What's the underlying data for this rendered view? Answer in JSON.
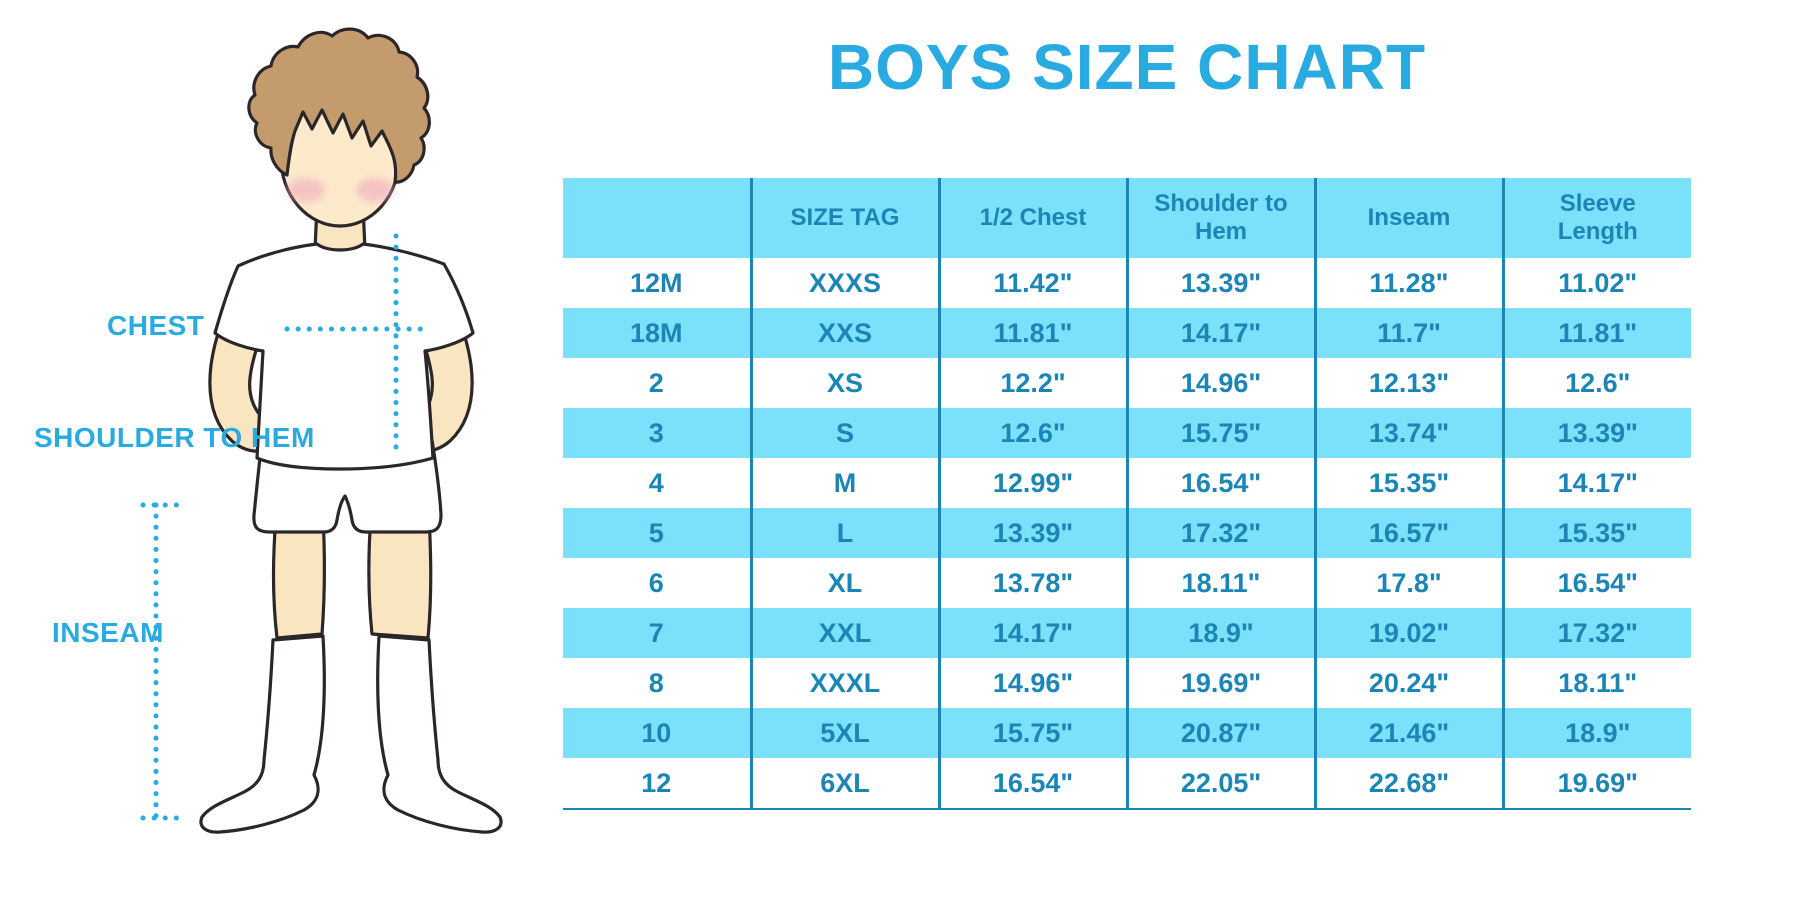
{
  "page": {
    "title": "BOYS SIZE CHART"
  },
  "colors": {
    "accent_blue": "#29ABE2",
    "table_text_blue": "#1B86B5",
    "table_row_fill": "#7BE0FA",
    "illustration_outline": "#2B2627",
    "skin": "#FAE5C1",
    "hair": "#C49B6C",
    "blush": "#F1A9BE"
  },
  "diagram": {
    "figure": "boy-measurement-illustration",
    "labels": {
      "chest": "CHEST",
      "shoulder_to_hem": "SHOULDER TO HEM",
      "inseam": "INSEAM"
    }
  },
  "table": {
    "headers": [
      "",
      "SIZE TAG",
      "1/2 Chest",
      "Shoulder to Hem",
      "Inseam",
      "Sleeve Length"
    ],
    "rows": [
      [
        "12M",
        "XXXS",
        "11.42\"",
        "13.39\"",
        "11.28\"",
        "11.02\""
      ],
      [
        "18M",
        "XXS",
        "11.81\"",
        "14.17\"",
        "11.7\"",
        "11.81\""
      ],
      [
        "2",
        "XS",
        "12.2\"",
        "14.96\"",
        "12.13\"",
        "12.6\""
      ],
      [
        "3",
        "S",
        "12.6\"",
        "15.75\"",
        "13.74\"",
        "13.39\""
      ],
      [
        "4",
        "M",
        "12.99\"",
        "16.54\"",
        "15.35\"",
        "14.17\""
      ],
      [
        "5",
        "L",
        "13.39\"",
        "17.32\"",
        "16.57\"",
        "15.35\""
      ],
      [
        "6",
        "XL",
        "13.78\"",
        "18.11\"",
        "17.8\"",
        "16.54\""
      ],
      [
        "7",
        "XXL",
        "14.17\"",
        "18.9\"",
        "19.02\"",
        "17.32\""
      ],
      [
        "8",
        "XXXL",
        "14.96\"",
        "19.69\"",
        "20.24\"",
        "18.11\""
      ],
      [
        "10",
        "5XL",
        "15.75\"",
        "20.87\"",
        "21.46\"",
        "18.9\""
      ],
      [
        "12",
        "6XL",
        "16.54\"",
        "22.05\"",
        "22.68\"",
        "19.69\""
      ]
    ]
  }
}
